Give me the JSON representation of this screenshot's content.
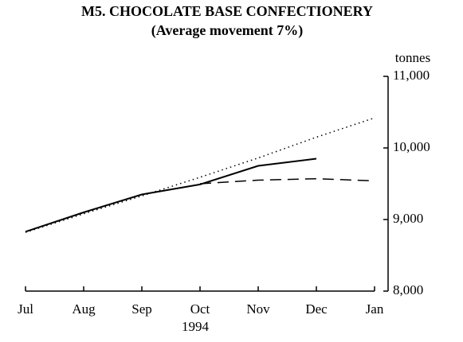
{
  "chart_data": {
    "type": "line",
    "title": "M5. CHOCOLATE BASE CONFECTIONERY",
    "subtitle": "(Average movement 7%)",
    "ylabel": "tonnes",
    "xlabel": "1994",
    "categories": [
      "Jul",
      "Aug",
      "Sep",
      "Oct",
      "Nov",
      "Dec",
      "Jan"
    ],
    "series": [
      {
        "color": "#000000",
        "style": "solid",
        "values": [
          8830,
          9100,
          9350,
          9490,
          9750,
          9850,
          null
        ]
      },
      {
        "color": "#000000",
        "style": "dotted",
        "values": [
          8820,
          9080,
          9330,
          9590,
          9860,
          10150,
          10420
        ]
      },
      {
        "color": "#000000",
        "style": "dashed",
        "values": [
          null,
          null,
          null,
          9500,
          9550,
          9570,
          9540
        ]
      }
    ],
    "ylim": [
      8000,
      11000
    ],
    "yticks": [
      {
        "value": 8000,
        "label": "8,000"
      },
      {
        "value": 9000,
        "label": "9,000"
      },
      {
        "value": 10000,
        "label": "10,000"
      },
      {
        "value": 11000,
        "label": "11,000"
      }
    ],
    "axis_side": "right"
  }
}
